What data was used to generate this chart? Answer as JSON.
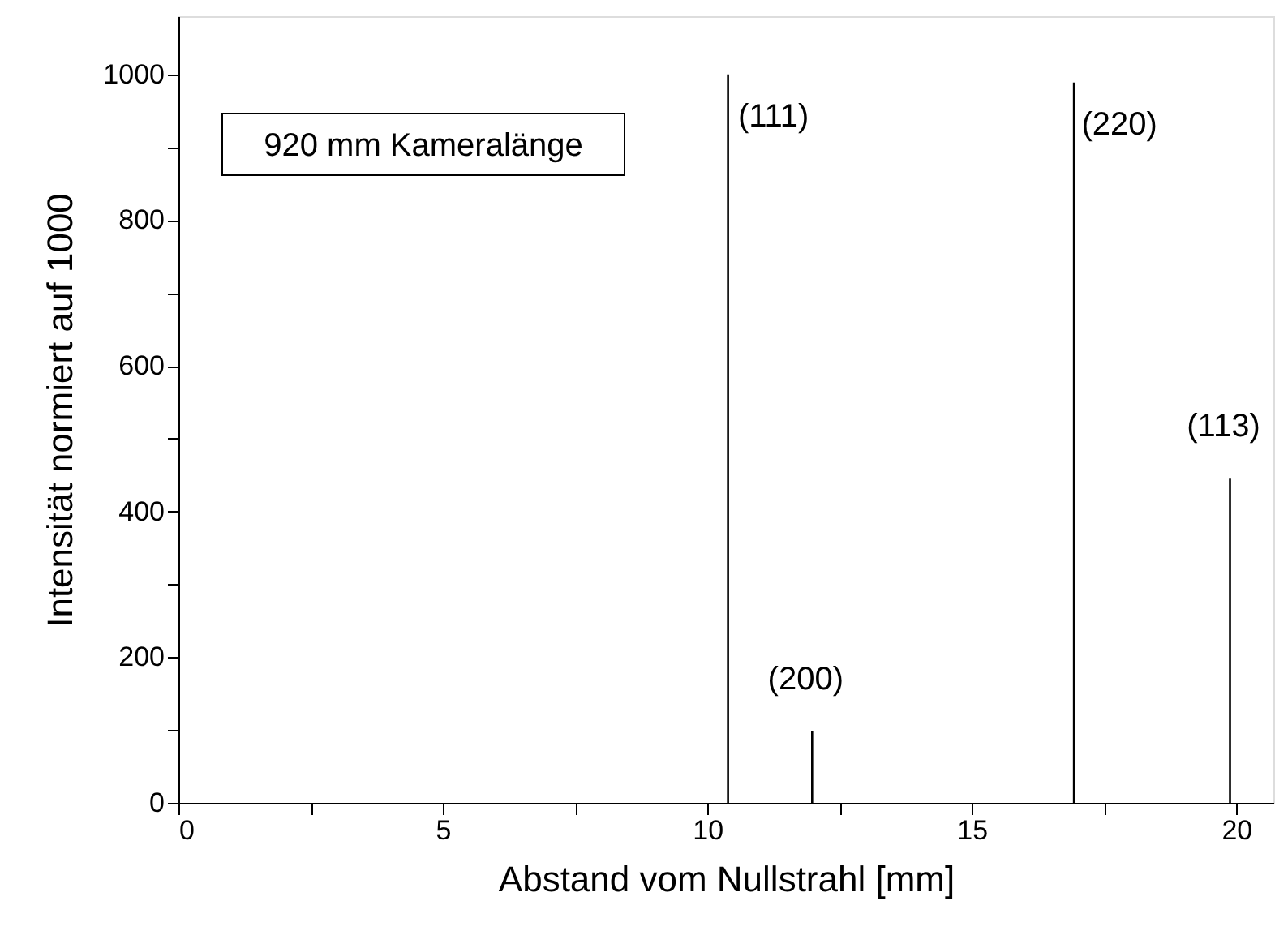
{
  "chart_data": {
    "type": "bar",
    "xlabel": "Abstand vom Nullstrahl [mm]",
    "ylabel": "Intensität normiert auf 1000",
    "x": [
      10.39,
      11.98,
      16.93,
      19.88
    ],
    "values": [
      1000,
      98,
      989,
      445
    ],
    "color": "#000000",
    "xlim": [
      0,
      20.7
    ],
    "xticks": [
      0,
      {
        "value": 2.5,
        "label": null
      },
      5,
      {
        "value": 7.5,
        "label": null
      },
      10,
      {
        "value": 12.5,
        "label": null
      },
      15,
      {
        "value": 17.5,
        "label": null
      },
      20
    ],
    "ylim": [
      0,
      1080
    ],
    "yticks": [
      0,
      {
        "value": 100,
        "label": null
      },
      200,
      {
        "value": 300,
        "label": null
      },
      400,
      {
        "value": 500,
        "label": null
      },
      600,
      {
        "value": 700,
        "label": null
      },
      800,
      {
        "value": 900,
        "label": null
      },
      1000
    ],
    "grid": false,
    "annotations": [
      {
        "text": "(111)",
        "x": 10.39,
        "y": 1000
      },
      {
        "text": "(200)",
        "x": 11.98,
        "y": 98
      },
      {
        "text": "(220)",
        "x": 16.93,
        "y": 989
      },
      {
        "text": "(113)",
        "x": 19.88,
        "y": 445
      },
      "920 mm Kameralänge"
    ]
  }
}
